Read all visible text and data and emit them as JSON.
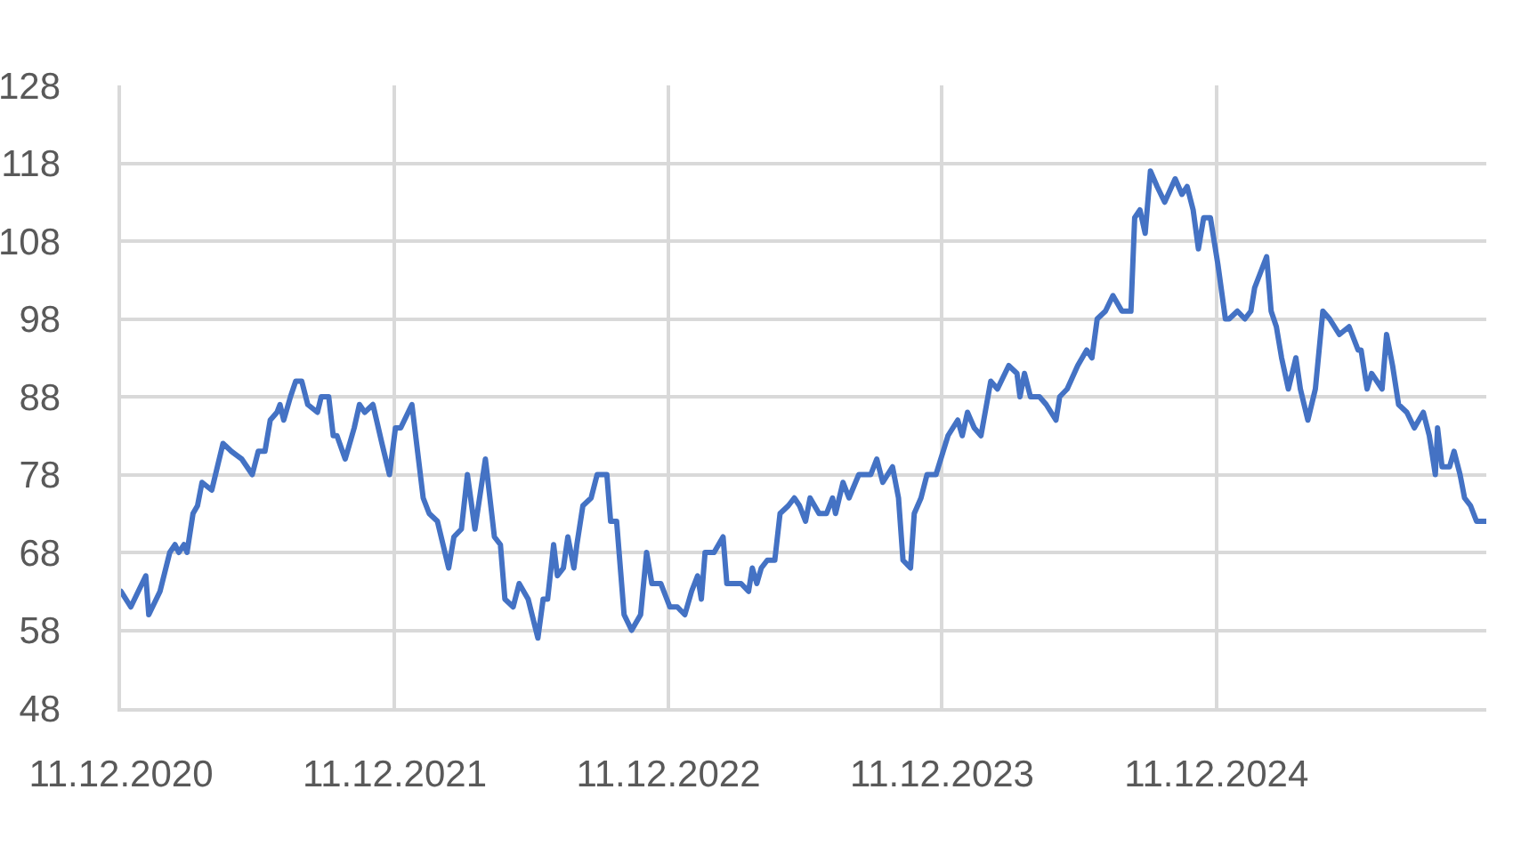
{
  "chart_data": {
    "type": "line",
    "x": [
      "2020-12-11",
      "2020-12-24",
      "2021-01-03",
      "2021-01-13",
      "2021-01-17",
      "2021-02-01",
      "2021-02-14",
      "2021-02-21",
      "2021-02-26",
      "2021-03-05",
      "2021-03-09",
      "2021-03-17",
      "2021-03-23",
      "2021-03-29",
      "2021-04-11",
      "2021-04-26",
      "2021-05-07",
      "2021-05-21",
      "2021-06-04",
      "2021-06-12",
      "2021-06-21",
      "2021-06-28",
      "2021-07-07",
      "2021-07-11",
      "2021-07-16",
      "2021-07-25",
      "2021-08-01",
      "2021-08-09",
      "2021-08-17",
      "2021-08-30",
      "2021-09-04",
      "2021-09-14",
      "2021-09-20",
      "2021-09-25",
      "2021-10-06",
      "2021-10-18",
      "2021-10-25",
      "2021-11-01",
      "2021-11-12",
      "2021-11-24",
      "2021-12-04",
      "2021-12-12",
      "2021-12-19",
      "2022-01-03",
      "2022-01-18",
      "2022-01-26",
      "2022-02-06",
      "2022-02-21",
      "2022-02-28",
      "2022-03-10",
      "2022-03-18",
      "2022-03-28",
      "2022-04-11",
      "2022-04-23",
      "2022-05-01",
      "2022-05-07",
      "2022-05-18",
      "2022-05-26",
      "2022-06-07",
      "2022-06-20",
      "2022-06-27",
      "2022-07-03",
      "2022-07-11",
      "2022-07-16",
      "2022-07-24",
      "2022-07-30",
      "2022-08-07",
      "2022-08-11",
      "2022-08-19",
      "2022-08-30",
      "2022-09-07",
      "2022-09-20",
      "2022-09-25",
      "2022-10-03",
      "2022-10-13",
      "2022-10-23",
      "2022-11-04",
      "2022-11-12",
      "2022-11-19",
      "2022-12-01",
      "2022-12-13",
      "2022-12-23",
      "2023-01-02",
      "2023-01-11",
      "2023-01-19",
      "2023-01-24",
      "2023-01-29",
      "2023-02-10",
      "2023-02-22",
      "2023-02-27",
      "2023-03-10",
      "2023-03-18",
      "2023-03-28",
      "2023-04-02",
      "2023-04-08",
      "2023-04-14",
      "2023-04-22",
      "2023-05-02",
      "2023-05-09",
      "2023-05-20",
      "2023-05-28",
      "2023-06-04",
      "2023-06-12",
      "2023-06-18",
      "2023-06-30",
      "2023-07-10",
      "2023-07-18",
      "2023-07-22",
      "2023-08-01",
      "2023-08-09",
      "2023-08-22",
      "2023-09-07",
      "2023-09-15",
      "2023-09-23",
      "2023-10-06",
      "2023-10-14",
      "2023-10-20",
      "2023-10-30",
      "2023-11-04",
      "2023-11-13",
      "2023-11-21",
      "2023-12-03",
      "2023-12-19",
      "2024-01-01",
      "2024-01-07",
      "2024-01-14",
      "2024-01-23",
      "2024-02-01",
      "2024-02-14",
      "2024-02-23",
      "2024-03-09",
      "2024-03-20",
      "2024-03-24",
      "2024-03-30",
      "2024-04-07",
      "2024-04-19",
      "2024-04-28",
      "2024-05-11",
      "2024-05-16",
      "2024-05-26",
      "2024-06-09",
      "2024-06-21",
      "2024-06-28",
      "2024-07-05",
      "2024-07-16",
      "2024-07-26",
      "2024-08-07",
      "2024-08-19",
      "2024-08-24",
      "2024-08-31",
      "2024-09-07",
      "2024-09-14",
      "2024-09-23",
      "2024-10-03",
      "2024-10-17",
      "2024-10-26",
      "2024-11-02",
      "2024-11-10",
      "2024-11-17",
      "2024-11-24",
      "2024-12-03",
      "2024-12-13",
      "2024-12-23",
      "2024-12-28",
      "2025-01-08",
      "2025-01-18",
      "2025-01-26",
      "2025-01-31",
      "2025-02-08",
      "2025-02-16",
      "2025-02-22",
      "2025-03-01",
      "2025-03-08",
      "2025-03-17",
      "2025-03-27",
      "2025-04-02",
      "2025-04-12",
      "2025-04-22",
      "2025-05-02",
      "2025-05-11",
      "2025-05-24",
      "2025-06-06",
      "2025-06-18",
      "2025-06-22",
      "2025-06-30",
      "2025-07-06",
      "2025-07-20",
      "2025-07-26",
      "2025-08-03",
      "2025-08-11",
      "2025-08-22",
      "2025-09-01",
      "2025-09-13",
      "2025-09-21",
      "2025-09-29",
      "2025-10-02",
      "2025-10-08",
      "2025-10-18",
      "2025-10-24",
      "2025-11-01",
      "2025-11-07",
      "2025-11-15",
      "2025-11-23",
      "2025-12-05"
    ],
    "series": [
      {
        "color": "#4472c4",
        "values": [
          63,
          61,
          63,
          65,
          60,
          63,
          68,
          69,
          68,
          69,
          68,
          73,
          74,
          77,
          76,
          82,
          81,
          80,
          78,
          81,
          81,
          85,
          86,
          87,
          85,
          88,
          90,
          90,
          87,
          86,
          88,
          88,
          83,
          83,
          80,
          84,
          87,
          86,
          87,
          82,
          78,
          84,
          84,
          87,
          75,
          73,
          72,
          66,
          70,
          71,
          78,
          71,
          80,
          70,
          69,
          62,
          61,
          64,
          62,
          57,
          62,
          62,
          69,
          65,
          66,
          70,
          66,
          69,
          74,
          75,
          78,
          78,
          72,
          72,
          60,
          58,
          60,
          68,
          64,
          64,
          61,
          61,
          60,
          63,
          65,
          62,
          68,
          68,
          70,
          64,
          64,
          64,
          63,
          66,
          64,
          66,
          67,
          67,
          73,
          74,
          75,
          74,
          72,
          75,
          73,
          73,
          75,
          73,
          77,
          75,
          78,
          78,
          80,
          77,
          79,
          75,
          67,
          66,
          73,
          75,
          78,
          78,
          83,
          85,
          83,
          86,
          84,
          83,
          90,
          89,
          92,
          91,
          88,
          91,
          88,
          88,
          87,
          85,
          88,
          89,
          92,
          94,
          93,
          98,
          99,
          101,
          99,
          99,
          111,
          112,
          109,
          117,
          115,
          113,
          116,
          114,
          115,
          112,
          107,
          111,
          111,
          105,
          98,
          98,
          99,
          98,
          99,
          102,
          104,
          106,
          99,
          97,
          93,
          89,
          93,
          89,
          85,
          89,
          99,
          98,
          96,
          97,
          94,
          94,
          89,
          91,
          89,
          96,
          92,
          87,
          86,
          84,
          86,
          83,
          78,
          84,
          79,
          79,
          81,
          78,
          75,
          74,
          72,
          72
        ]
      }
    ],
    "xlim": [
      "2020-12-11",
      "2025-12-06"
    ],
    "xticks": [
      {
        "value": "2020-12-11",
        "label": "11.12.2020"
      },
      {
        "value": "2021-12-11",
        "label": "11.12.2021"
      },
      {
        "value": "2022-12-11",
        "label": "11.12.2022"
      },
      {
        "value": "2023-12-11",
        "label": "11.12.2023"
      },
      {
        "value": "2024-12-11",
        "label": "11.12.2024"
      }
    ],
    "ylim": [
      48,
      128
    ],
    "yticks": [
      48,
      58,
      68,
      78,
      88,
      98,
      108,
      118,
      128
    ],
    "grid": true
  }
}
